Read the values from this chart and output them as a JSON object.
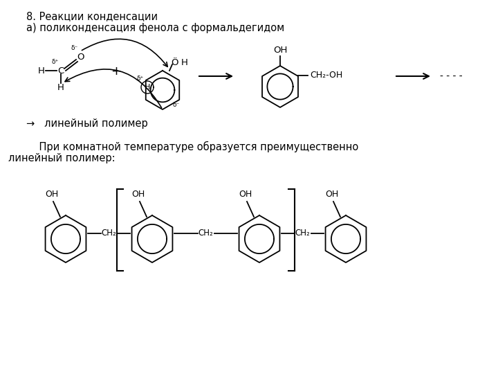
{
  "title1": "8. Реакции конденсации",
  "title2": "а) поликонденсация фенола с формальдегидом",
  "arrow_text": "→   линейный полимер",
  "para_text1": "    При комнатной температуре образуется преимущественно",
  "para_text2": "линейный полимер:",
  "bg_color": "#ffffff",
  "text_color": "#000000",
  "font_size_title": 10.5,
  "font_size_body": 10.5,
  "fig_width": 7.2,
  "fig_height": 5.4,
  "dpi": 100
}
